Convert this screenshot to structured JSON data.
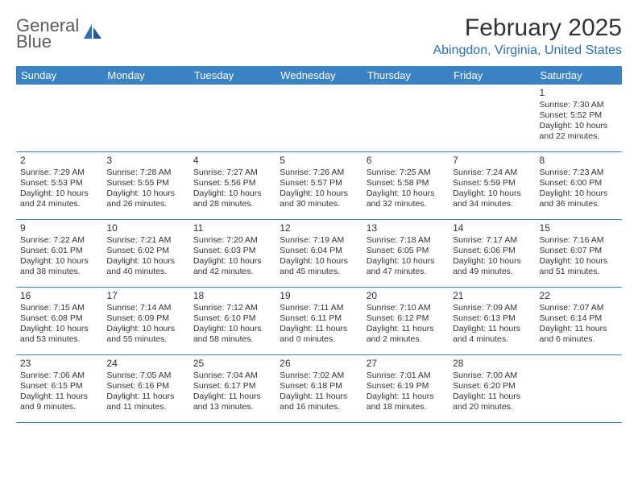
{
  "logo": {
    "line1": "General",
    "line2": "Blue"
  },
  "title": "February 2025",
  "location": "Abingdon, Virginia, United States",
  "colors": {
    "header_bg": "#3b82c4",
    "header_text": "#ffffff",
    "accent": "#2b6fb3",
    "rule": "#3b82c4",
    "body_text": "#333333",
    "logo_grey": "#5a5a5a"
  },
  "day_names": [
    "Sunday",
    "Monday",
    "Tuesday",
    "Wednesday",
    "Thursday",
    "Friday",
    "Saturday"
  ],
  "weeks": [
    [
      {
        "n": "",
        "empty": true
      },
      {
        "n": "",
        "empty": true
      },
      {
        "n": "",
        "empty": true
      },
      {
        "n": "",
        "empty": true
      },
      {
        "n": "",
        "empty": true
      },
      {
        "n": "",
        "empty": true
      },
      {
        "n": "1",
        "sunrise": "Sunrise: 7:30 AM",
        "sunset": "Sunset: 5:52 PM",
        "dl1": "Daylight: 10 hours",
        "dl2": "and 22 minutes."
      }
    ],
    [
      {
        "n": "2",
        "sunrise": "Sunrise: 7:29 AM",
        "sunset": "Sunset: 5:53 PM",
        "dl1": "Daylight: 10 hours",
        "dl2": "and 24 minutes."
      },
      {
        "n": "3",
        "sunrise": "Sunrise: 7:28 AM",
        "sunset": "Sunset: 5:55 PM",
        "dl1": "Daylight: 10 hours",
        "dl2": "and 26 minutes."
      },
      {
        "n": "4",
        "sunrise": "Sunrise: 7:27 AM",
        "sunset": "Sunset: 5:56 PM",
        "dl1": "Daylight: 10 hours",
        "dl2": "and 28 minutes."
      },
      {
        "n": "5",
        "sunrise": "Sunrise: 7:26 AM",
        "sunset": "Sunset: 5:57 PM",
        "dl1": "Daylight: 10 hours",
        "dl2": "and 30 minutes."
      },
      {
        "n": "6",
        "sunrise": "Sunrise: 7:25 AM",
        "sunset": "Sunset: 5:58 PM",
        "dl1": "Daylight: 10 hours",
        "dl2": "and 32 minutes."
      },
      {
        "n": "7",
        "sunrise": "Sunrise: 7:24 AM",
        "sunset": "Sunset: 5:59 PM",
        "dl1": "Daylight: 10 hours",
        "dl2": "and 34 minutes."
      },
      {
        "n": "8",
        "sunrise": "Sunrise: 7:23 AM",
        "sunset": "Sunset: 6:00 PM",
        "dl1": "Daylight: 10 hours",
        "dl2": "and 36 minutes."
      }
    ],
    [
      {
        "n": "9",
        "sunrise": "Sunrise: 7:22 AM",
        "sunset": "Sunset: 6:01 PM",
        "dl1": "Daylight: 10 hours",
        "dl2": "and 38 minutes."
      },
      {
        "n": "10",
        "sunrise": "Sunrise: 7:21 AM",
        "sunset": "Sunset: 6:02 PM",
        "dl1": "Daylight: 10 hours",
        "dl2": "and 40 minutes."
      },
      {
        "n": "11",
        "sunrise": "Sunrise: 7:20 AM",
        "sunset": "Sunset: 6:03 PM",
        "dl1": "Daylight: 10 hours",
        "dl2": "and 42 minutes."
      },
      {
        "n": "12",
        "sunrise": "Sunrise: 7:19 AM",
        "sunset": "Sunset: 6:04 PM",
        "dl1": "Daylight: 10 hours",
        "dl2": "and 45 minutes."
      },
      {
        "n": "13",
        "sunrise": "Sunrise: 7:18 AM",
        "sunset": "Sunset: 6:05 PM",
        "dl1": "Daylight: 10 hours",
        "dl2": "and 47 minutes."
      },
      {
        "n": "14",
        "sunrise": "Sunrise: 7:17 AM",
        "sunset": "Sunset: 6:06 PM",
        "dl1": "Daylight: 10 hours",
        "dl2": "and 49 minutes."
      },
      {
        "n": "15",
        "sunrise": "Sunrise: 7:16 AM",
        "sunset": "Sunset: 6:07 PM",
        "dl1": "Daylight: 10 hours",
        "dl2": "and 51 minutes."
      }
    ],
    [
      {
        "n": "16",
        "sunrise": "Sunrise: 7:15 AM",
        "sunset": "Sunset: 6:08 PM",
        "dl1": "Daylight: 10 hours",
        "dl2": "and 53 minutes."
      },
      {
        "n": "17",
        "sunrise": "Sunrise: 7:14 AM",
        "sunset": "Sunset: 6:09 PM",
        "dl1": "Daylight: 10 hours",
        "dl2": "and 55 minutes."
      },
      {
        "n": "18",
        "sunrise": "Sunrise: 7:12 AM",
        "sunset": "Sunset: 6:10 PM",
        "dl1": "Daylight: 10 hours",
        "dl2": "and 58 minutes."
      },
      {
        "n": "19",
        "sunrise": "Sunrise: 7:11 AM",
        "sunset": "Sunset: 6:11 PM",
        "dl1": "Daylight: 11 hours",
        "dl2": "and 0 minutes."
      },
      {
        "n": "20",
        "sunrise": "Sunrise: 7:10 AM",
        "sunset": "Sunset: 6:12 PM",
        "dl1": "Daylight: 11 hours",
        "dl2": "and 2 minutes."
      },
      {
        "n": "21",
        "sunrise": "Sunrise: 7:09 AM",
        "sunset": "Sunset: 6:13 PM",
        "dl1": "Daylight: 11 hours",
        "dl2": "and 4 minutes."
      },
      {
        "n": "22",
        "sunrise": "Sunrise: 7:07 AM",
        "sunset": "Sunset: 6:14 PM",
        "dl1": "Daylight: 11 hours",
        "dl2": "and 6 minutes."
      }
    ],
    [
      {
        "n": "23",
        "sunrise": "Sunrise: 7:06 AM",
        "sunset": "Sunset: 6:15 PM",
        "dl1": "Daylight: 11 hours",
        "dl2": "and 9 minutes."
      },
      {
        "n": "24",
        "sunrise": "Sunrise: 7:05 AM",
        "sunset": "Sunset: 6:16 PM",
        "dl1": "Daylight: 11 hours",
        "dl2": "and 11 minutes."
      },
      {
        "n": "25",
        "sunrise": "Sunrise: 7:04 AM",
        "sunset": "Sunset: 6:17 PM",
        "dl1": "Daylight: 11 hours",
        "dl2": "and 13 minutes."
      },
      {
        "n": "26",
        "sunrise": "Sunrise: 7:02 AM",
        "sunset": "Sunset: 6:18 PM",
        "dl1": "Daylight: 11 hours",
        "dl2": "and 16 minutes."
      },
      {
        "n": "27",
        "sunrise": "Sunrise: 7:01 AM",
        "sunset": "Sunset: 6:19 PM",
        "dl1": "Daylight: 11 hours",
        "dl2": "and 18 minutes."
      },
      {
        "n": "28",
        "sunrise": "Sunrise: 7:00 AM",
        "sunset": "Sunset: 6:20 PM",
        "dl1": "Daylight: 11 hours",
        "dl2": "and 20 minutes."
      },
      {
        "n": "",
        "empty": true
      }
    ]
  ]
}
